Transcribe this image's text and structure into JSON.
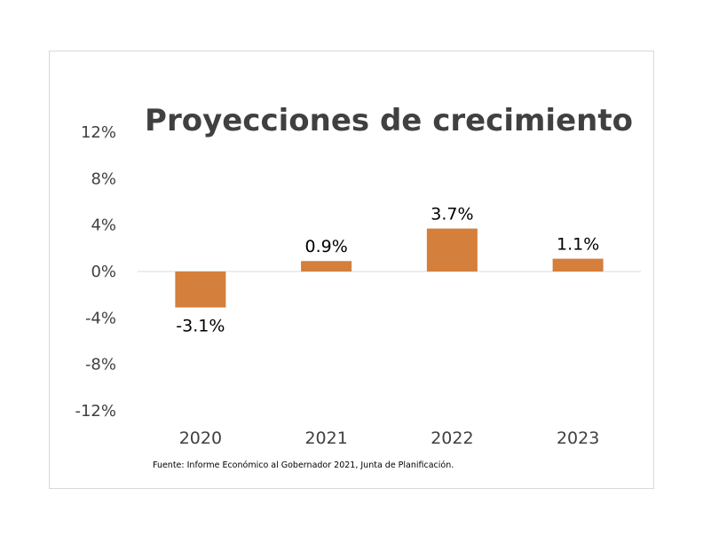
{
  "chart_data": {
    "type": "bar",
    "title": "Proyecciones de crecimiento",
    "categories": [
      "2020",
      "2021",
      "2022",
      "2023"
    ],
    "values": [
      -3.1,
      0.9,
      3.7,
      1.1
    ],
    "value_labels": [
      "-3.1%",
      "0.9%",
      "3.7%",
      "1.1%"
    ],
    "ylim": [
      -12,
      12
    ],
    "yticks": [
      12,
      8,
      4,
      0,
      -4,
      -8,
      -12
    ],
    "ytick_labels": [
      "12%",
      "8%",
      "4%",
      "0%",
      "-4%",
      "-8%",
      "-12%"
    ],
    "xlabel": "",
    "ylabel": "",
    "bar_color": "#d47f3b",
    "grid": false,
    "legend": "none"
  },
  "source_note": "Fuente: Informe Económico al Gobernador 2021, Junta de Planificación."
}
